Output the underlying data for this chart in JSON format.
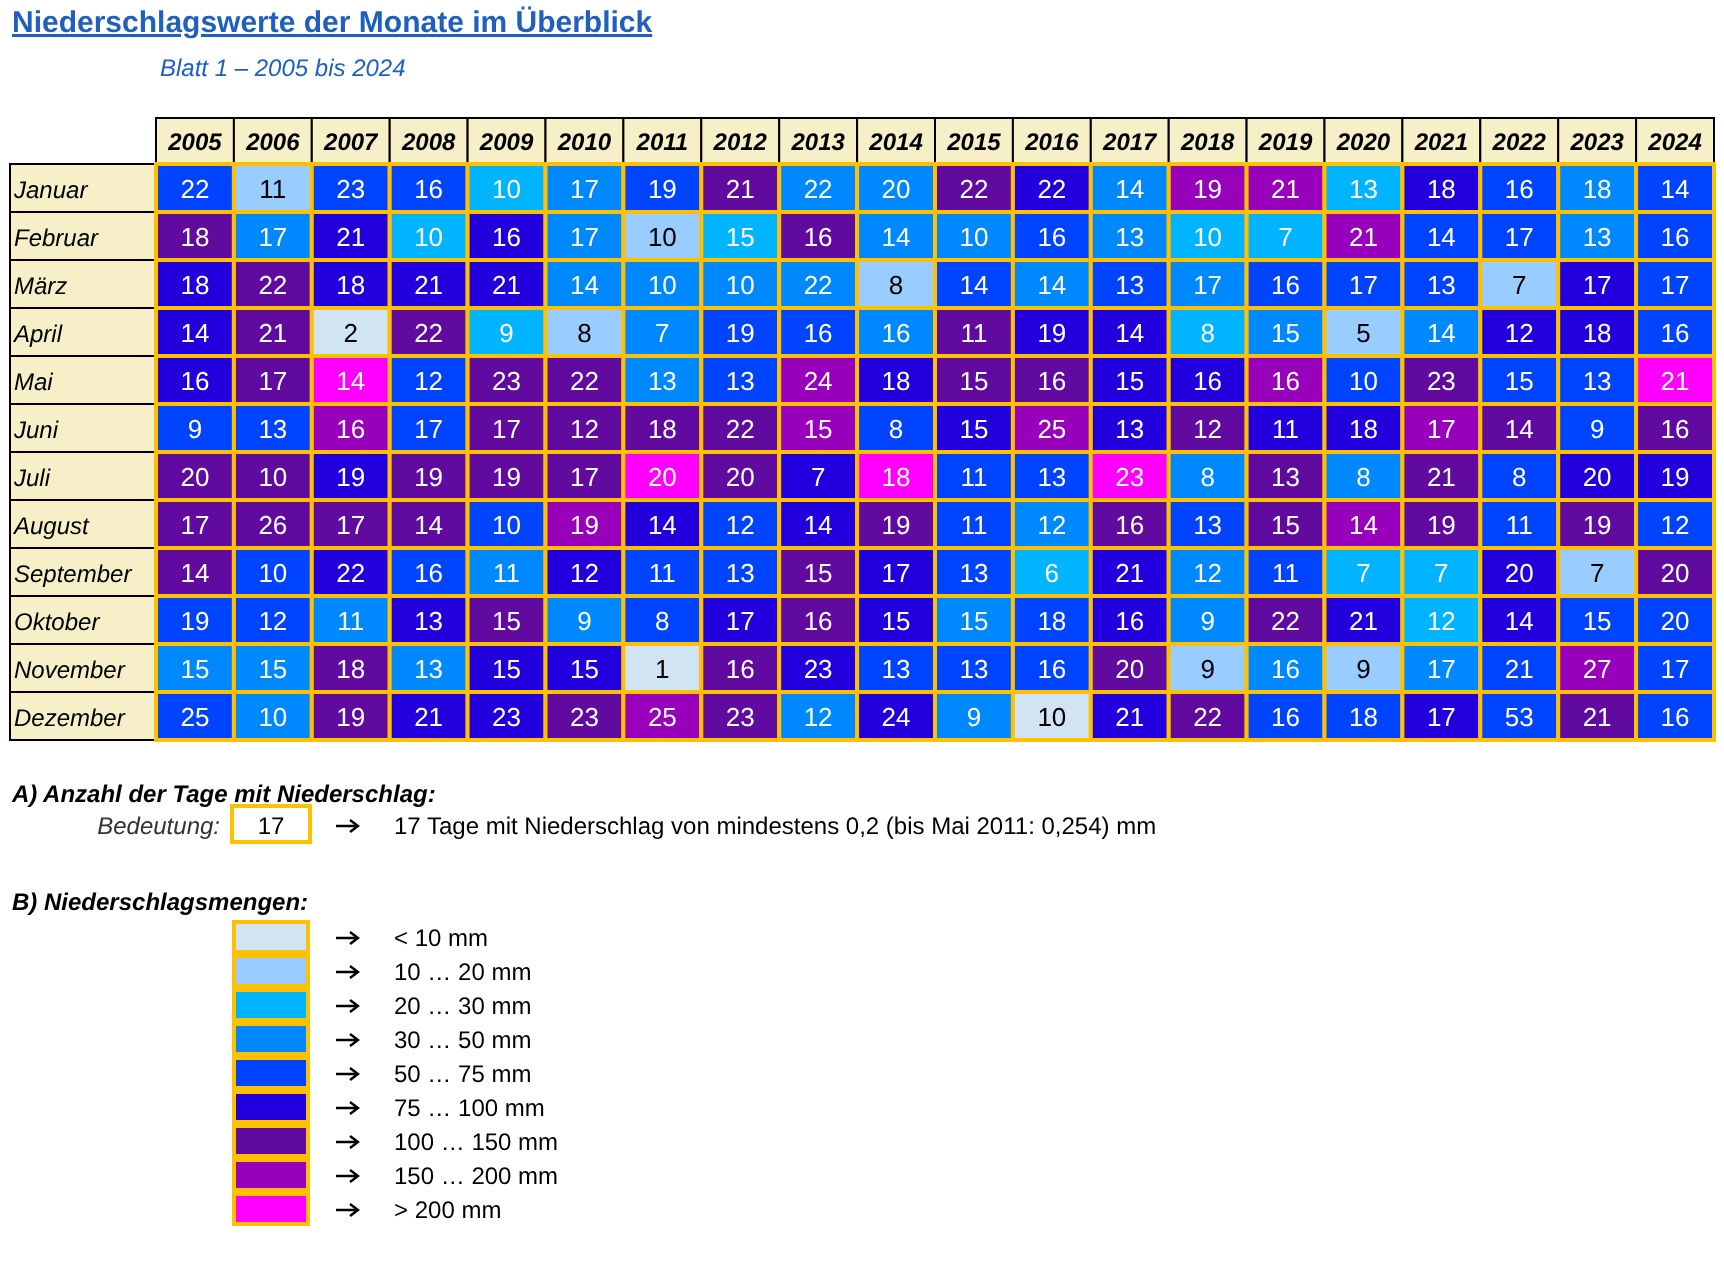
{
  "chart_data": {
    "type": "heatmap",
    "title": "Niederschlagswerte der Monate im Überblick",
    "subtitle": "Blatt 1 – 2005 bis 2024",
    "categories": [
      "2005",
      "2006",
      "2007",
      "2008",
      "2009",
      "2010",
      "2011",
      "2012",
      "2013",
      "2014",
      "2015",
      "2016",
      "2017",
      "2018",
      "2019",
      "2020",
      "2021",
      "2022",
      "2023",
      "2024"
    ],
    "data_labels": true,
    "y_categories": [
      "Januar",
      "Februar",
      "März",
      "April",
      "Mai",
      "Juni",
      "Juli",
      "August",
      "September",
      "Oktober",
      "November",
      "Dezember"
    ],
    "cells": [
      [
        22,
        11,
        23,
        16,
        10,
        17,
        19,
        21,
        22,
        20,
        22,
        22,
        14,
        19,
        21,
        13,
        18,
        16,
        18,
        14
      ],
      [
        18,
        17,
        21,
        10,
        16,
        17,
        10,
        15,
        16,
        14,
        10,
        16,
        13,
        10,
        7,
        21,
        14,
        17,
        13,
        16
      ],
      [
        18,
        22,
        18,
        21,
        21,
        14,
        10,
        10,
        22,
        8,
        14,
        14,
        13,
        17,
        16,
        17,
        13,
        7,
        17,
        17
      ],
      [
        14,
        21,
        2,
        22,
        9,
        8,
        7,
        19,
        16,
        16,
        11,
        19,
        14,
        8,
        15,
        5,
        14,
        12,
        18,
        16
      ],
      [
        16,
        17,
        14,
        12,
        23,
        22,
        13,
        13,
        24,
        18,
        15,
        16,
        15,
        16,
        16,
        10,
        23,
        15,
        13,
        21
      ],
      [
        9,
        13,
        16,
        17,
        17,
        12,
        18,
        22,
        15,
        8,
        15,
        25,
        13,
        12,
        11,
        18,
        17,
        14,
        9,
        16
      ],
      [
        20,
        10,
        19,
        19,
        19,
        17,
        20,
        20,
        7,
        18,
        11,
        13,
        23,
        8,
        13,
        8,
        21,
        8,
        20,
        19
      ],
      [
        17,
        26,
        17,
        14,
        10,
        19,
        14,
        12,
        14,
        19,
        11,
        12,
        16,
        13,
        15,
        14,
        19,
        11,
        19,
        12
      ],
      [
        14,
        10,
        22,
        16,
        11,
        12,
        11,
        13,
        15,
        17,
        13,
        6,
        21,
        12,
        11,
        7,
        7,
        20,
        7,
        20
      ],
      [
        19,
        12,
        11,
        13,
        15,
        9,
        8,
        17,
        16,
        15,
        15,
        18,
        16,
        9,
        22,
        21,
        12,
        14,
        15,
        20
      ],
      [
        15,
        15,
        18,
        13,
        15,
        15,
        1,
        16,
        23,
        13,
        13,
        16,
        20,
        9,
        16,
        9,
        17,
        21,
        27,
        17
      ],
      [
        25,
        10,
        19,
        21,
        23,
        23,
        25,
        23,
        12,
        24,
        9,
        10,
        21,
        22,
        16,
        18,
        17,
        53,
        21,
        16
      ]
    ],
    "colors": [
      [
        "#0044ff",
        "#99ccff",
        "#0044ff",
        "#0044ff",
        "#00b4ff",
        "#0088ff",
        "#0044ff",
        "#600aa0",
        "#0088ff",
        "#0088ff",
        "#600aa0",
        "#2200dd",
        "#0088ff",
        "#9900bb",
        "#9900bb",
        "#00b4ff",
        "#2200dd",
        "#0044ff",
        "#0088ff",
        "#0044ff"
      ],
      [
        "#600aa0",
        "#0088ff",
        "#2200dd",
        "#00b4ff",
        "#2200dd",
        "#0088ff",
        "#99ccff",
        "#00b4ff",
        "#600aa0",
        "#0088ff",
        "#0088ff",
        "#0044ff",
        "#0088ff",
        "#00b4ff",
        "#00b4ff",
        "#9900bb",
        "#0044ff",
        "#0044ff",
        "#0088ff",
        "#0044ff"
      ],
      [
        "#2200dd",
        "#600aa0",
        "#2200dd",
        "#2200dd",
        "#2200dd",
        "#0088ff",
        "#0088ff",
        "#0088ff",
        "#0088ff",
        "#99ccff",
        "#0044ff",
        "#0088ff",
        "#0044ff",
        "#0088ff",
        "#0044ff",
        "#0044ff",
        "#0044ff",
        "#99ccff",
        "#2200dd",
        "#0044ff"
      ],
      [
        "#2200dd",
        "#600aa0",
        "#d0e4f4",
        "#600aa0",
        "#00b4ff",
        "#99ccff",
        "#0088ff",
        "#0044ff",
        "#0044ff",
        "#0088ff",
        "#600aa0",
        "#2200dd",
        "#2200dd",
        "#00b4ff",
        "#0088ff",
        "#99ccff",
        "#0088ff",
        "#2200dd",
        "#2200dd",
        "#0044ff"
      ],
      [
        "#2200dd",
        "#600aa0",
        "#ff00ff",
        "#0044ff",
        "#600aa0",
        "#600aa0",
        "#0088ff",
        "#0044ff",
        "#9900bb",
        "#2200dd",
        "#600aa0",
        "#600aa0",
        "#2200dd",
        "#2200dd",
        "#9900bb",
        "#0044ff",
        "#600aa0",
        "#0044ff",
        "#0044ff",
        "#ff00ff"
      ],
      [
        "#0044ff",
        "#0044ff",
        "#9900bb",
        "#0044ff",
        "#600aa0",
        "#600aa0",
        "#600aa0",
        "#600aa0",
        "#9900bb",
        "#0044ff",
        "#2200dd",
        "#9900bb",
        "#2200dd",
        "#600aa0",
        "#2200dd",
        "#2200dd",
        "#9900bb",
        "#600aa0",
        "#0044ff",
        "#600aa0"
      ],
      [
        "#600aa0",
        "#600aa0",
        "#2200dd",
        "#600aa0",
        "#600aa0",
        "#600aa0",
        "#ff00ff",
        "#600aa0",
        "#2200dd",
        "#ff00ff",
        "#0044ff",
        "#0044ff",
        "#ff00ff",
        "#0088ff",
        "#600aa0",
        "#0088ff",
        "#600aa0",
        "#0044ff",
        "#2200dd",
        "#2200dd"
      ],
      [
        "#600aa0",
        "#600aa0",
        "#600aa0",
        "#600aa0",
        "#0044ff",
        "#9900bb",
        "#2200dd",
        "#0044ff",
        "#2200dd",
        "#600aa0",
        "#0044ff",
        "#0088ff",
        "#600aa0",
        "#0044ff",
        "#600aa0",
        "#9900bb",
        "#600aa0",
        "#0044ff",
        "#600aa0",
        "#0044ff"
      ],
      [
        "#600aa0",
        "#0044ff",
        "#2200dd",
        "#0044ff",
        "#0088ff",
        "#2200dd",
        "#0044ff",
        "#0044ff",
        "#600aa0",
        "#2200dd",
        "#0044ff",
        "#00b4ff",
        "#2200dd",
        "#0088ff",
        "#0044ff",
        "#00b4ff",
        "#00b4ff",
        "#2200dd",
        "#99ccff",
        "#600aa0"
      ],
      [
        "#0044ff",
        "#0044ff",
        "#0088ff",
        "#2200dd",
        "#600aa0",
        "#0088ff",
        "#0044ff",
        "#2200dd",
        "#600aa0",
        "#2200dd",
        "#0088ff",
        "#0044ff",
        "#2200dd",
        "#0088ff",
        "#600aa0",
        "#2200dd",
        "#00b4ff",
        "#2200dd",
        "#0044ff",
        "#0044ff"
      ],
      [
        "#0088ff",
        "#0088ff",
        "#600aa0",
        "#0088ff",
        "#2200dd",
        "#2200dd",
        "#d0e4f4",
        "#600aa0",
        "#2200dd",
        "#0044ff",
        "#0044ff",
        "#0044ff",
        "#600aa0",
        "#99ccff",
        "#0088ff",
        "#99ccff",
        "#0088ff",
        "#0044ff",
        "#9900bb",
        "#0044ff"
      ],
      [
        "#0044ff",
        "#0088ff",
        "#600aa0",
        "#2200dd",
        "#2200dd",
        "#600aa0",
        "#9900bb",
        "#600aa0",
        "#0088ff",
        "#2200dd",
        "#0088ff",
        "#d0e4f4",
        "#2200dd",
        "#600aa0",
        "#0044ff",
        "#0044ff",
        "#2200dd",
        "#0044ff",
        "#600aa0",
        "#0044ff"
      ]
    ],
    "annotations": [
      "A) Anzahl der Tage mit Niederschlag:",
      "Bedeutung:",
      "17",
      "17 Tage mit Niederschlag von mindestens 0,2 (bis Mai 2011: 0,254) mm",
      "B) Niederschlagsmengen:",
      "< 10 mm",
      "10 … 20 mm",
      "20 … 30 mm",
      "30 … 50 mm",
      "50 … 75 mm",
      "75 … 100 mm",
      "100 … 150 mm",
      "150 … 200 mm",
      "> 200 mm"
    ]
  }
}
